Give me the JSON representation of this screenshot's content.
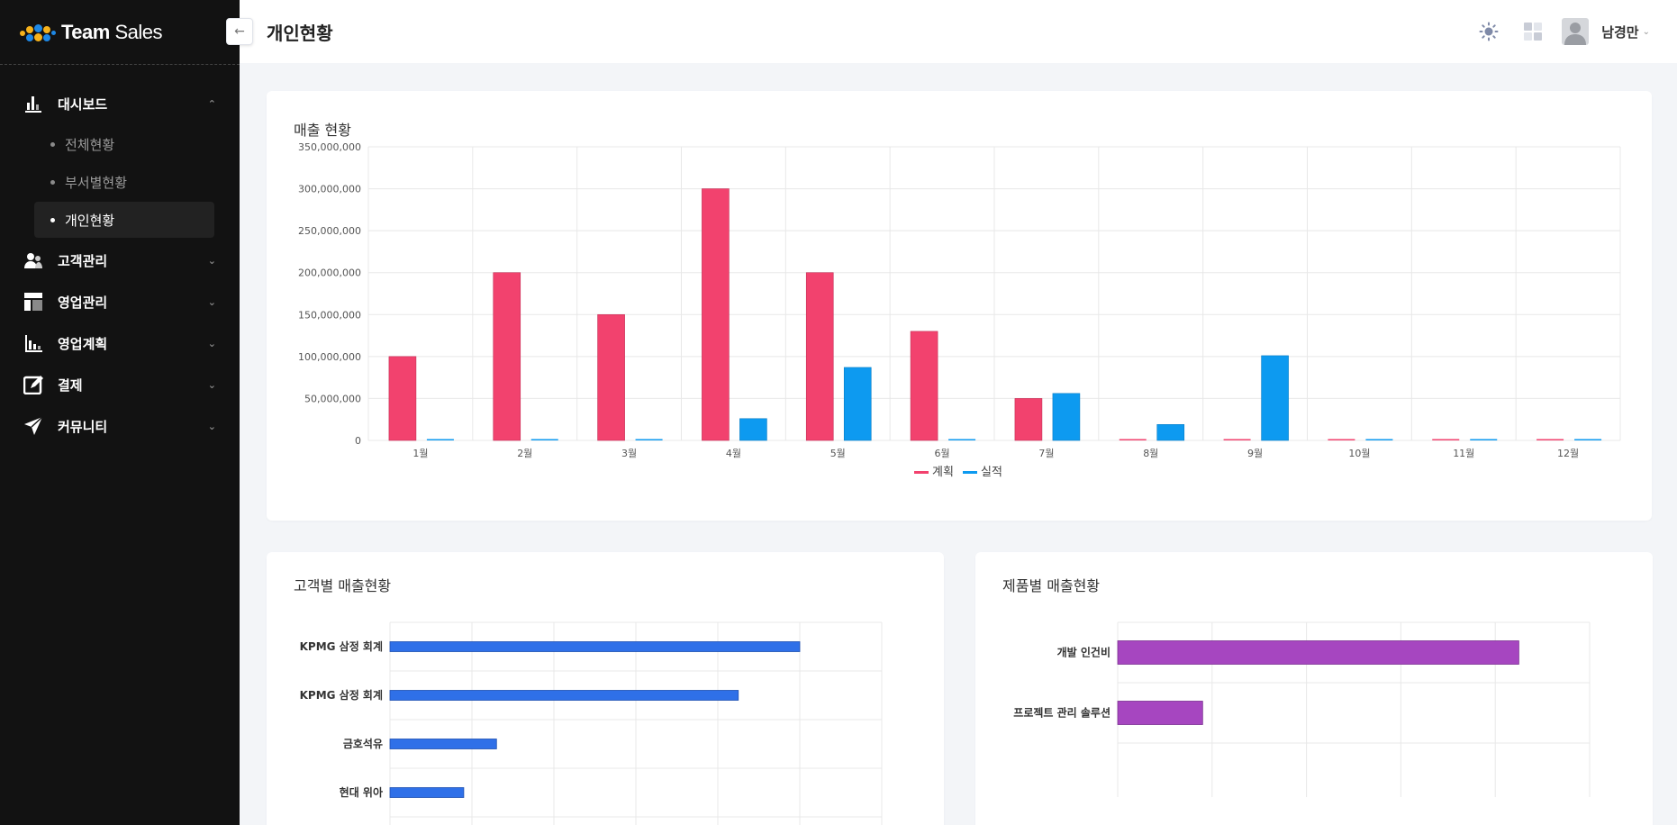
{
  "app": {
    "brand_bold": "Team",
    "brand_light": "Sales"
  },
  "header": {
    "title": "개인현황",
    "user_name": "남경만"
  },
  "sidebar": {
    "items": [
      {
        "label": "대시보드",
        "icon": "bar-chart-icon",
        "expanded": true,
        "children": [
          {
            "label": "전체현황",
            "active": false
          },
          {
            "label": "부서별현황",
            "active": false
          },
          {
            "label": "개인현황",
            "active": true
          }
        ]
      },
      {
        "label": "고객관리",
        "icon": "customers-icon",
        "expanded": false
      },
      {
        "label": "영업관리",
        "icon": "layout-icon",
        "expanded": false
      },
      {
        "label": "영업계획",
        "icon": "plan-chart-icon",
        "expanded": false
      },
      {
        "label": "결제",
        "icon": "edit-icon",
        "expanded": false
      },
      {
        "label": "커뮤니티",
        "icon": "send-icon",
        "expanded": false
      }
    ]
  },
  "colors": {
    "plan": "#f2426e",
    "actual": "#0d9af0",
    "customer_bar": "#2f70e8",
    "product_bar": "#a646c0"
  },
  "chart_data": [
    {
      "id": "sales",
      "type": "bar",
      "title": "매출 현황",
      "categories": [
        "1월",
        "2월",
        "3월",
        "4월",
        "5월",
        "6월",
        "7월",
        "8월",
        "9월",
        "10월",
        "11월",
        "12월"
      ],
      "series": [
        {
          "name": "계획",
          "values": [
            100000000,
            200000000,
            150000000,
            300000000,
            200000000,
            130000000,
            50000000,
            0,
            0,
            0,
            0,
            0
          ]
        },
        {
          "name": "실적",
          "values": [
            0,
            0,
            0,
            26000000,
            87000000,
            0,
            56000000,
            19000000,
            101000000,
            0,
            0,
            0
          ]
        }
      ],
      "ylim": [
        0,
        350000000
      ],
      "yticks": [
        "0",
        "50,000,000",
        "100,000,000",
        "150,000,000",
        "200,000,000",
        "250,000,000",
        "300,000,000",
        "350,000,000"
      ],
      "legend": "bottom"
    },
    {
      "id": "customer",
      "type": "bar",
      "orientation": "horizontal",
      "title": "고객별 매출현황",
      "categories": [
        "KPMG 삼정 회계",
        "KPMG 삼정 회계",
        "금호석유",
        "현대 위아"
      ],
      "values": [
        100,
        85,
        26,
        18
      ],
      "xlim": [
        0,
        120
      ]
    },
    {
      "id": "product",
      "type": "bar",
      "orientation": "horizontal",
      "title": "제품별 매출현황",
      "categories": [
        "개발 인건비",
        "프로젝트 관리 솔루션"
      ],
      "values": [
        85,
        18
      ],
      "xlim": [
        0,
        100
      ]
    }
  ]
}
